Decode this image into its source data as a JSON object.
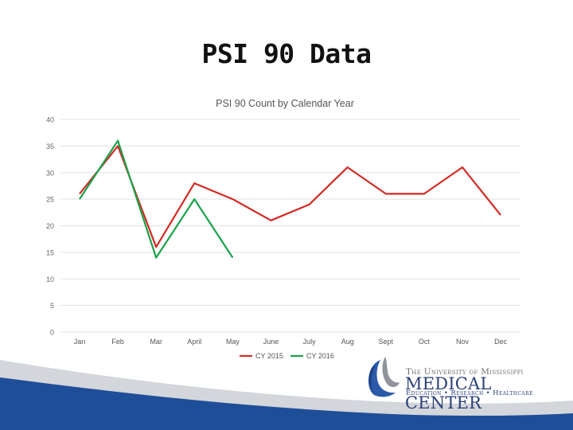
{
  "slide": {
    "title": "PSI 90 Data"
  },
  "chart_data": {
    "type": "line",
    "title": "PSI 90 Count by Calendar Year",
    "xlabel": "",
    "ylabel": "",
    "categories": [
      "Jan",
      "Feb",
      "Mar",
      "April",
      "May",
      "June",
      "July",
      "Aug",
      "Sept",
      "Oct",
      "Nov",
      "Dec"
    ],
    "ylim": [
      0,
      40
    ],
    "yticks": [
      0,
      5,
      10,
      15,
      20,
      25,
      30,
      35,
      40
    ],
    "grid": true,
    "legend_position": "bottom",
    "series": [
      {
        "name": "CY 2015",
        "color": "#d42a24",
        "values": [
          26,
          35,
          16,
          28,
          25,
          21,
          24,
          31,
          26,
          26,
          31,
          22
        ]
      },
      {
        "name": "CY 2016",
        "color": "#19a34a",
        "values": [
          25,
          36,
          14,
          25,
          14,
          null,
          null,
          null,
          null,
          null,
          null,
          null
        ]
      }
    ]
  },
  "logo": {
    "line1": "The University of Mississippi",
    "line2": "MEDICAL CENTER",
    "line3": "Education • Research • Healthcare"
  },
  "colors": {
    "footer_blue": "#1f4e99",
    "footer_gray": "#c9ccd1",
    "logo_blue": "#2a3f78"
  }
}
